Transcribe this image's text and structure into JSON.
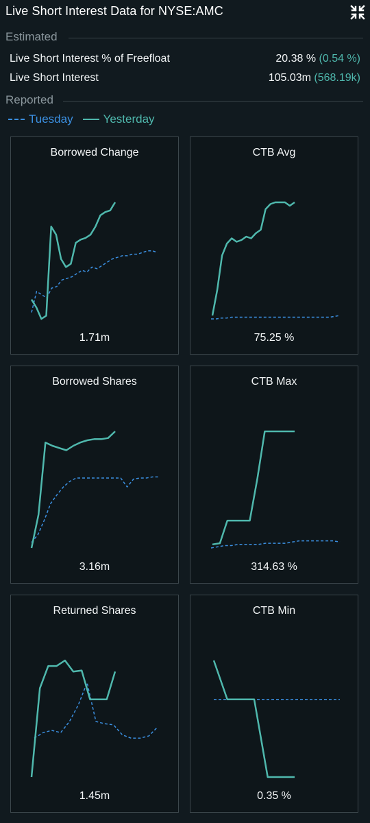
{
  "header": {
    "title": "Live Short Interest Data for NYSE:AMC",
    "collapse_icon": "collapse-arrows-icon"
  },
  "estimated": {
    "label": "Estimated",
    "rows": [
      {
        "label": "Live Short Interest % of Freefloat",
        "value": "20.38 %",
        "change": "(0.54 %)"
      },
      {
        "label": "Live Short Interest",
        "value": "105.03m",
        "change": "(568.19k)"
      }
    ]
  },
  "reported": {
    "label": "Reported",
    "legend": [
      {
        "name": "Tuesday",
        "color": "#3b8fe0",
        "style": "dashed"
      },
      {
        "name": "Yesterday",
        "color": "#4fb8ad",
        "style": "solid"
      }
    ]
  },
  "colors": {
    "tuesday": "#3b8fe0",
    "yesterday": "#4fb8ad",
    "background": "#111a1f",
    "card_border": "#3c474c"
  },
  "chart_data": [
    {
      "type": "line",
      "title": "Borrowed Change",
      "value": "1.71m",
      "series": [
        {
          "name": "Tuesday",
          "style": "dashed",
          "values": [
            0.52,
            0.65,
            0.63,
            0.61,
            0.67,
            0.68,
            0.72,
            0.73,
            0.74,
            0.76,
            0.78,
            0.77,
            0.8,
            0.79,
            0.81,
            0.83,
            0.85,
            0.86,
            0.87,
            0.87,
            0.88,
            0.88,
            0.89,
            0.9,
            0.9,
            0.89
          ]
        },
        {
          "name": "Yesterday",
          "style": "solid",
          "values": [
            0.6,
            0.55,
            0.48,
            0.5,
            1.05,
            1.0,
            0.85,
            0.8,
            0.82,
            0.95,
            0.97,
            0.98,
            1.0,
            1.05,
            1.12,
            1.14,
            1.15,
            1.2
          ]
        }
      ]
    },
    {
      "type": "line",
      "title": "CTB Avg",
      "value": "75.25 %",
      "series": [
        {
          "name": "Tuesday",
          "style": "dashed",
          "values": [
            0.18,
            0.18,
            0.185,
            0.185,
            0.19,
            0.19,
            0.19,
            0.19,
            0.19,
            0.19,
            0.19,
            0.19,
            0.19,
            0.19,
            0.19,
            0.19,
            0.19,
            0.19,
            0.19,
            0.19,
            0.19,
            0.19,
            0.19,
            0.19,
            0.195,
            0.2
          ]
        },
        {
          "name": "Yesterday",
          "style": "solid",
          "values": [
            0.2,
            0.35,
            0.55,
            0.62,
            0.65,
            0.63,
            0.64,
            0.66,
            0.65,
            0.68,
            0.7,
            0.82,
            0.85,
            0.86,
            0.86,
            0.86,
            0.84,
            0.86
          ]
        }
      ]
    },
    {
      "type": "line",
      "title": "Borrowed Shares",
      "value": "3.16m",
      "series": [
        {
          "name": "Tuesday",
          "style": "dashed",
          "values": [
            0.05,
            0.12,
            0.25,
            0.4,
            0.48,
            0.55,
            0.6,
            0.63,
            0.63,
            0.63,
            0.63,
            0.63,
            0.63,
            0.63,
            0.63,
            0.55,
            0.62,
            0.63,
            0.63,
            0.64,
            0.64
          ]
        },
        {
          "name": "Yesterday",
          "style": "solid",
          "values": [
            0.0,
            0.3,
            0.95,
            0.92,
            0.9,
            0.88,
            0.92,
            0.95,
            0.97,
            0.98,
            0.98,
            0.99,
            1.05
          ]
        }
      ]
    },
    {
      "type": "line",
      "title": "CTB Max",
      "value": "314.63 %",
      "series": [
        {
          "name": "Tuesday",
          "style": "dashed",
          "values": [
            0.02,
            0.03,
            0.04,
            0.04,
            0.05,
            0.05,
            0.05,
            0.05,
            0.06,
            0.06,
            0.06,
            0.06,
            0.07,
            0.08,
            0.08,
            0.08,
            0.08,
            0.08,
            0.08,
            0.07
          ]
        },
        {
          "name": "Yesterday",
          "style": "solid",
          "values": [
            0.05,
            0.06,
            0.25,
            0.25,
            0.25,
            0.25,
            0.6,
            1.0,
            1.0,
            1.0,
            1.0,
            1.0
          ]
        }
      ]
    },
    {
      "type": "line",
      "title": "Returned Shares",
      "value": "1.45m",
      "series": [
        {
          "name": "Tuesday",
          "style": "dashed",
          "values": [
            0.35,
            0.4,
            0.42,
            0.4,
            0.5,
            0.65,
            0.85,
            0.5,
            0.48,
            0.47,
            0.38,
            0.35,
            0.35,
            0.37,
            0.45
          ]
        },
        {
          "name": "Yesterday",
          "style": "solid",
          "values": [
            0.0,
            0.8,
            1.0,
            1.0,
            1.05,
            0.95,
            0.96,
            0.7,
            0.7,
            0.7,
            0.95
          ]
        }
      ]
    },
    {
      "type": "line",
      "title": "CTB Min",
      "value": "0.35 %",
      "series": [
        {
          "name": "Tuesday",
          "style": "dashed",
          "values": [
            0.6,
            0.6,
            0.6,
            0.6,
            0.6,
            0.6,
            0.6,
            0.6,
            0.6
          ]
        },
        {
          "name": "Yesterday",
          "style": "solid",
          "values": [
            0.9,
            0.6,
            0.6,
            0.6,
            0.0,
            0.0,
            0.0
          ]
        }
      ]
    }
  ]
}
